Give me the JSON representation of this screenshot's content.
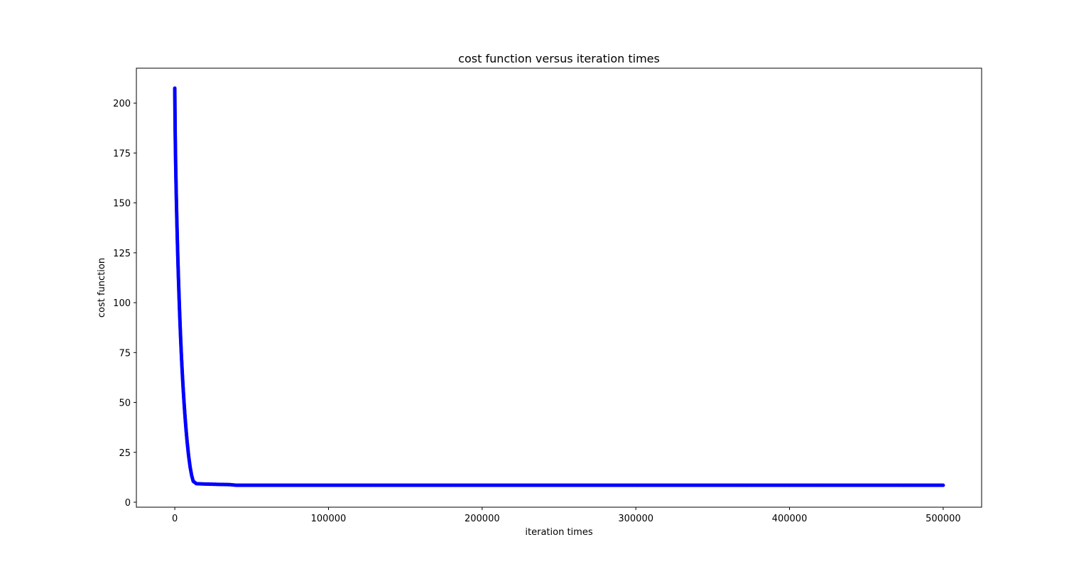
{
  "chart_data": {
    "type": "scatter",
    "title": "cost function versus iteration times",
    "xlabel": "iteration times",
    "ylabel": "cost function",
    "xlim": [
      -25000,
      525000
    ],
    "ylim": [
      -2.5,
      217.5
    ],
    "xticks": [
      0,
      100000,
      200000,
      300000,
      400000,
      500000
    ],
    "xtick_labels": [
      "0",
      "100000",
      "200000",
      "300000",
      "400000",
      "500000"
    ],
    "yticks": [
      0,
      25,
      50,
      75,
      100,
      125,
      150,
      175,
      200
    ],
    "ytick_labels": [
      "0",
      "25",
      "50",
      "75",
      "100",
      "125",
      "150",
      "175",
      "200"
    ],
    "grid": false,
    "marker_color": "#0000ff",
    "series": [
      {
        "x": [
          0,
          50,
          100,
          150,
          200,
          250,
          300,
          350,
          400,
          450,
          500,
          550,
          600,
          700,
          800,
          900,
          1000,
          1200,
          1400,
          1600,
          1800,
          2000,
          2300,
          2600,
          3000,
          3400,
          3800,
          4200,
          4600,
          5000,
          5500,
          6000,
          6500,
          7000,
          7500,
          8000,
          9000,
          10000,
          11000,
          12000,
          14000,
          16000,
          20000,
          25000,
          30000,
          36000,
          40000,
          50000,
          60000,
          80000,
          100000,
          120000,
          150000,
          180000,
          200000,
          220000,
          250000,
          280000,
          300000,
          320000,
          350000,
          380000,
          400000,
          420000,
          450000,
          480000,
          500000
        ],
        "y": [
          207.5,
          201.8,
          197.0,
          192.7,
          189.0,
          185.8,
          182.7,
          179.9,
          177.1,
          174.7,
          172.4,
          170.1,
          168.0,
          163.8,
          159.9,
          156.1,
          152.5,
          145.6,
          139.2,
          133.1,
          127.3,
          121.8,
          114.1,
          106.9,
          98.0,
          89.8,
          82.2,
          75.2,
          68.8,
          62.9,
          56.3,
          50.2,
          44.6,
          39.5,
          34.8,
          30.5,
          23.2,
          17.5,
          13.3,
          10.5,
          9.3,
          9.2,
          9.1,
          9.0,
          8.9,
          8.8,
          8.5,
          8.5,
          8.5,
          8.5,
          8.5,
          8.5,
          8.5,
          8.5,
          8.5,
          8.5,
          8.5,
          8.5,
          8.5,
          8.5,
          8.5,
          8.5,
          8.5,
          8.5,
          8.5,
          8.5,
          8.5
        ]
      }
    ]
  }
}
